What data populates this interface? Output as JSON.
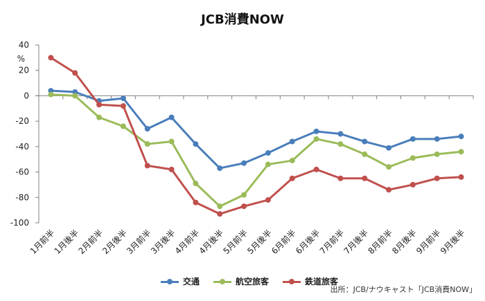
{
  "chart_data": {
    "type": "line",
    "title": "JCB消費NOW",
    "ylabel": "%",
    "ylim": [
      -100,
      40
    ],
    "yticks": [
      40,
      20,
      0,
      -20,
      -40,
      -60,
      -80,
      -100
    ],
    "categories": [
      "1月前半",
      "1月後半",
      "2月前半",
      "2月後半",
      "3月前半",
      "3月後半",
      "4月前半",
      "4月後半",
      "5月前半",
      "5月後半",
      "6月前半",
      "6月後半",
      "7月前半",
      "7月後半",
      "8月前半",
      "8月後半",
      "9月前半",
      "9月後半"
    ],
    "series": [
      {
        "name": "交通",
        "color": "#4a7ebb",
        "values": [
          4,
          3,
          -4,
          -2,
          -26,
          -17,
          -38,
          -57,
          -53,
          -45,
          -36,
          -28,
          -30,
          -36,
          -41,
          -34,
          -34,
          -32
        ]
      },
      {
        "name": "航空旅客",
        "color": "#9bbb59",
        "values": [
          1,
          0,
          -17,
          -24,
          -38,
          -36,
          -69,
          -87,
          -78,
          -54,
          -51,
          -34,
          -38,
          -46,
          -56,
          -49,
          -46,
          -44
        ]
      },
      {
        "name": "鉄道旅客",
        "color": "#c0504d",
        "values": [
          30,
          18,
          -7,
          -8,
          -55,
          -58,
          -84,
          -93,
          -87,
          -82,
          -65,
          -58,
          -65,
          -65,
          -74,
          -70,
          -65,
          -64
        ]
      }
    ],
    "grid": false,
    "legend": "bottom"
  },
  "source": "出所：JCB/ナウキャスト「JCB消費NOW」"
}
